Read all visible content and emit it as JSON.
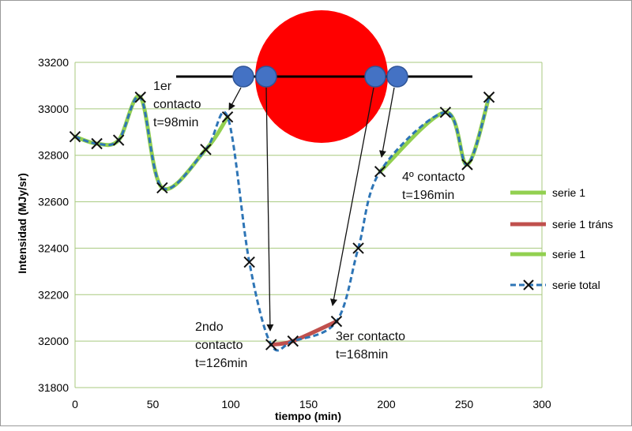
{
  "chart_data": {
    "type": "line",
    "xlabel": "tiempo (min)",
    "ylabel": "Intensidad (MJy/sr)",
    "xlim": [
      0,
      300
    ],
    "ylim": [
      31800,
      33200
    ],
    "x_ticks": [
      "0",
      "50",
      "100",
      "150",
      "200",
      "250",
      "300"
    ],
    "y_ticks": [
      "31800",
      "32000",
      "32200",
      "32400",
      "32600",
      "32800",
      "33000",
      "33200"
    ],
    "grid": "horizontal",
    "legend_position": "right",
    "series": [
      {
        "name": "serie 1",
        "color": "#92d050",
        "x": [
          0,
          14,
          28,
          42,
          56,
          84,
          98
        ],
        "y": [
          32880,
          32850,
          32865,
          33050,
          32660,
          32825,
          32965
        ]
      },
      {
        "name": "serie 1 tráns",
        "color": "#c0504d",
        "x": [
          126,
          140,
          168
        ],
        "y": [
          31985,
          32000,
          32085
        ]
      },
      {
        "name": "serie 1",
        "color": "#92d050",
        "x": [
          196,
          238,
          252,
          266
        ],
        "y": [
          32730,
          32985,
          32760,
          33050
        ]
      },
      {
        "name": "serie total",
        "color": "#2e75b6",
        "marker": "x",
        "x": [
          0,
          14,
          28,
          42,
          56,
          84,
          98,
          112,
          126,
          140,
          168,
          182,
          196,
          238,
          252,
          266
        ],
        "y": [
          32880,
          32850,
          32865,
          33050,
          32660,
          32825,
          32965,
          32340,
          31985,
          32000,
          32085,
          32400,
          32730,
          32985,
          32760,
          33050
        ]
      }
    ],
    "annotations": [
      {
        "lines": [
          "1er",
          "contacto",
          "t=98min"
        ]
      },
      {
        "lines": [
          "2ndo",
          "contacto",
          "t=126min"
        ]
      },
      {
        "lines": [
          "3er contacto",
          "t=168min"
        ]
      },
      {
        "lines": [
          "4º contacto",
          "t=196min"
        ]
      }
    ],
    "diagram": {
      "sun_color": "#ff0000",
      "planet_color": "#4472c4",
      "track_color": "#000000"
    }
  }
}
